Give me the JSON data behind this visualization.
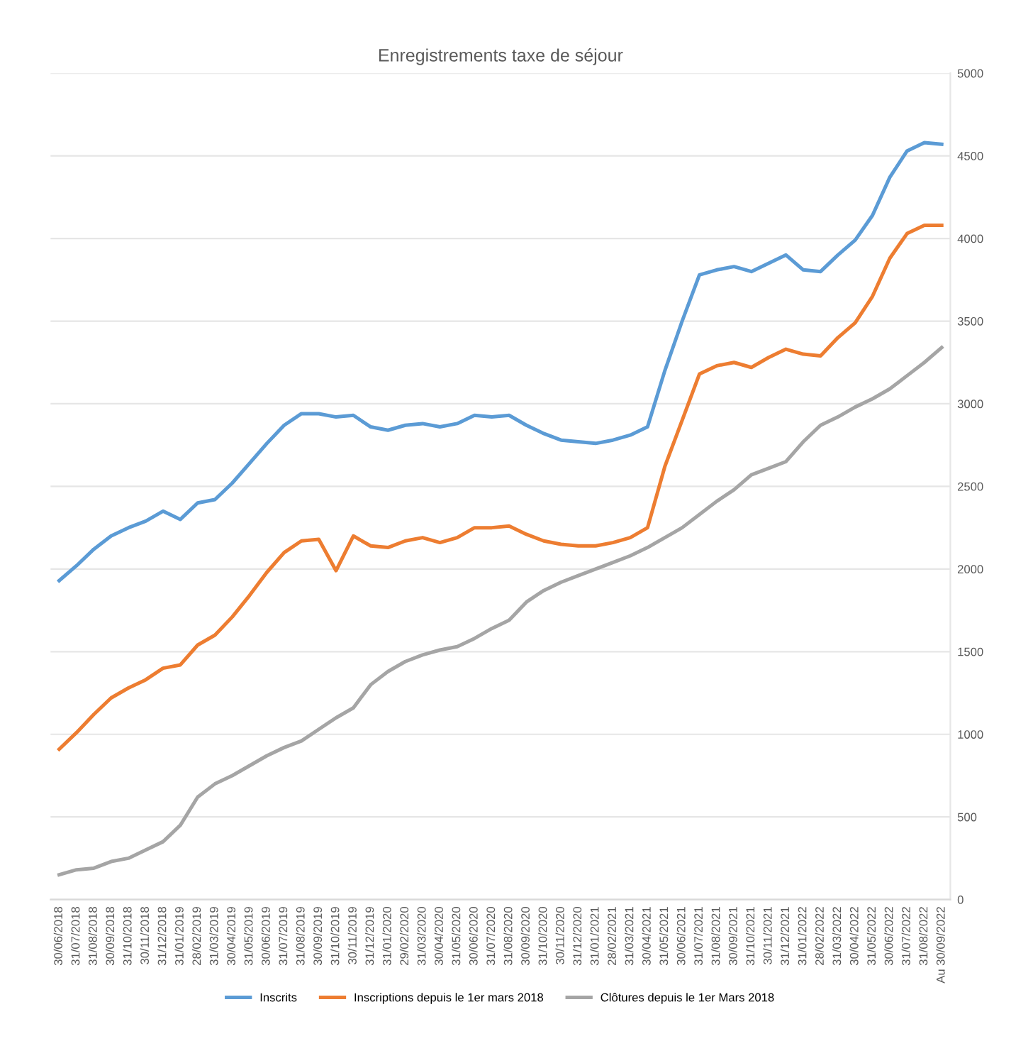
{
  "chart_data": {
    "type": "line",
    "title": "Enregistrements taxe de séjour",
    "categories": [
      "30/06/2018",
      "31/07/2018",
      "31/08/2018",
      "30/09/2018",
      "31/10/2018",
      "30/11/2018",
      "31/12/2018",
      "31/01/2019",
      "28/02/2019",
      "31/03/2019",
      "30/04/2019",
      "31/05/2019",
      "30/06/2019",
      "31/07/2019",
      "31/08/2019",
      "30/09/2019",
      "31/10/2019",
      "30/11/2019",
      "31/12/2019",
      "31/01/2020",
      "29/02/2020",
      "31/03/2020",
      "30/04/2020",
      "31/05/2020",
      "30/06/2020",
      "31/07/2020",
      "31/08/2020",
      "30/09/2020",
      "31/10/2020",
      "30/11/2020",
      "31/12/2020",
      "31/01/2021",
      "28/02/2021",
      "31/03/2021",
      "30/04/2021",
      "31/05/2021",
      "30/06/2021",
      "31/07/2021",
      "31/08/2021",
      "30/09/2021",
      "31/10/2021",
      "30/11/2021",
      "31/12/2021",
      "31/01/2022",
      "28/02/2022",
      "31/03/2022",
      "30/04/2022",
      "31/05/2022",
      "30/06/2022",
      "31/07/2022",
      "31/08/2022",
      "Au 30/09/2022"
    ],
    "series": [
      {
        "name": "Inscrits",
        "color": "#5b9bd5",
        "values": [
          1930,
          2020,
          2120,
          2200,
          2250,
          2290,
          2350,
          2300,
          2400,
          2420,
          2520,
          2640,
          2760,
          2870,
          2940,
          2940,
          2920,
          2930,
          2860,
          2840,
          2870,
          2880,
          2860,
          2880,
          2930,
          2920,
          2930,
          2870,
          2820,
          2780,
          2770,
          2760,
          2780,
          2810,
          2860,
          3200,
          3500,
          3780,
          3810,
          3830,
          3800,
          3850,
          3900,
          3810,
          3800,
          3900,
          3990,
          4140,
          4370,
          4530,
          4580,
          4570
        ]
      },
      {
        "name": "Inscriptions depuis le 1er mars 2018",
        "color": "#ed7d31",
        "values": [
          910,
          1010,
          1120,
          1220,
          1280,
          1330,
          1400,
          1420,
          1540,
          1600,
          1710,
          1840,
          1980,
          2100,
          2170,
          2180,
          1990,
          2200,
          2140,
          2130,
          2170,
          2190,
          2160,
          2190,
          2250,
          2250,
          2260,
          2210,
          2170,
          2150,
          2140,
          2140,
          2160,
          2190,
          2250,
          2620,
          2900,
          3180,
          3230,
          3250,
          3220,
          3280,
          3330,
          3300,
          3290,
          3400,
          3490,
          3650,
          3880,
          4030,
          4080,
          4080
        ]
      },
      {
        "name": "Clôtures depuis le 1er Mars 2018",
        "color": "#a5a5a5",
        "values": [
          150,
          180,
          190,
          230,
          250,
          300,
          350,
          450,
          620,
          700,
          750,
          810,
          870,
          920,
          960,
          1030,
          1100,
          1160,
          1300,
          1380,
          1440,
          1480,
          1510,
          1530,
          1580,
          1640,
          1690,
          1800,
          1870,
          1920,
          1960,
          2000,
          2040,
          2080,
          2130,
          2190,
          2250,
          2330,
          2410,
          2480,
          2570,
          2610,
          2650,
          2770,
          2870,
          2920,
          2980,
          3030,
          3090,
          3170,
          3250,
          3340
        ]
      }
    ],
    "ylim": [
      0,
      5000
    ],
    "yticks": [
      0,
      500,
      1000,
      1500,
      2000,
      2500,
      3000,
      3500,
      4000,
      4500,
      5000
    ],
    "grid": "y",
    "legend": "bottom",
    "marker": "none",
    "line_style": "solid"
  }
}
